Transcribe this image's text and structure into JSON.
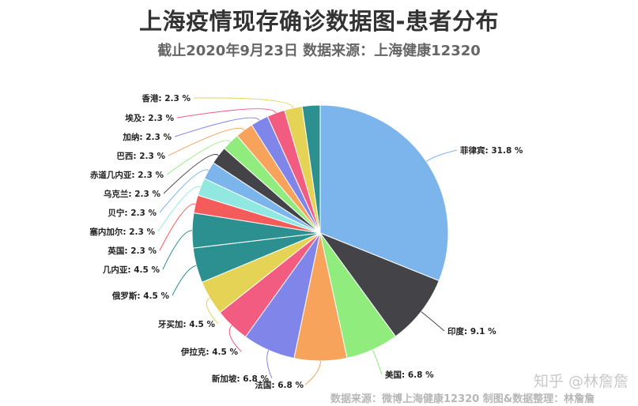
{
  "title": "上海疫情现存确诊数据图-患者分布",
  "subtitle": "截止2020年9月23日 数据来源：上海健康12320",
  "watermark": "知乎 @林詹詹",
  "source_note": "数据来源：微博上海健康12320 制图&数据整理：林詹詹",
  "chart_data": {
    "type": "pie",
    "title": "上海疫情现存确诊数据图-患者分布",
    "subtitle": "截止2020年9月23日 数据来源：上海健康12320",
    "unit": "%",
    "slices": [
      {
        "name": "菲律宾",
        "value": 31.8,
        "label": "菲律宾: 31.8 %",
        "color": "#7cb5ec"
      },
      {
        "name": "印度",
        "value": 9.1,
        "label": "印度: 9.1 %",
        "color": "#434348"
      },
      {
        "name": "美国",
        "value": 6.8,
        "label": "美国: 6.8 %",
        "color": "#90ed7d"
      },
      {
        "name": "法国",
        "value": 6.8,
        "label": "法国: 6.8 %",
        "color": "#f7a35c"
      },
      {
        "name": "新加坡",
        "value": 6.8,
        "label": "新加坡: 6.8 %",
        "color": "#8085e9"
      },
      {
        "name": "伊拉克",
        "value": 4.5,
        "label": "伊拉克: 4.5 %",
        "color": "#f15c80"
      },
      {
        "name": "牙买加",
        "value": 4.5,
        "label": "牙买加: 4.5 %",
        "color": "#e4d354"
      },
      {
        "name": "俄罗斯",
        "value": 4.5,
        "label": "俄罗斯: 4.5 %",
        "color": "#2b908f"
      },
      {
        "name": "几内亚",
        "value": 4.5,
        "label": "几内亚: 4.5 %",
        "color": "#2b908f"
      },
      {
        "name": "英国",
        "value": 2.3,
        "label": "英国: 2.3 %",
        "color": "#f45b5b"
      },
      {
        "name": "塞内加尔",
        "value": 2.3,
        "label": "塞内加尔: 2.3 %",
        "color": "#91e8e1"
      },
      {
        "name": "贝宁",
        "value": 2.3,
        "label": "贝宁: 2.3 %",
        "color": "#7cb5ec"
      },
      {
        "name": "乌克兰",
        "value": 2.3,
        "label": "乌克兰: 2.3 %",
        "color": "#434348"
      },
      {
        "name": "赤道几内亚",
        "value": 2.3,
        "label": "赤道几内亚: 2.3 %",
        "color": "#90ed7d"
      },
      {
        "name": "巴西",
        "value": 2.3,
        "label": "巴西: 2.3 %",
        "color": "#f7a35c"
      },
      {
        "name": "加纳",
        "value": 2.3,
        "label": "加纳: 2.3 %",
        "color": "#8085e9"
      },
      {
        "name": "埃及",
        "value": 2.3,
        "label": "埃及: 2.3 %",
        "color": "#f15c80"
      },
      {
        "name": "香港",
        "value": 2.3,
        "label": "香港: 2.3 %",
        "color": "#e4d354"
      },
      {
        "name": "",
        "value": 2.3,
        "label": "",
        "color": "#2b908f"
      }
    ]
  }
}
